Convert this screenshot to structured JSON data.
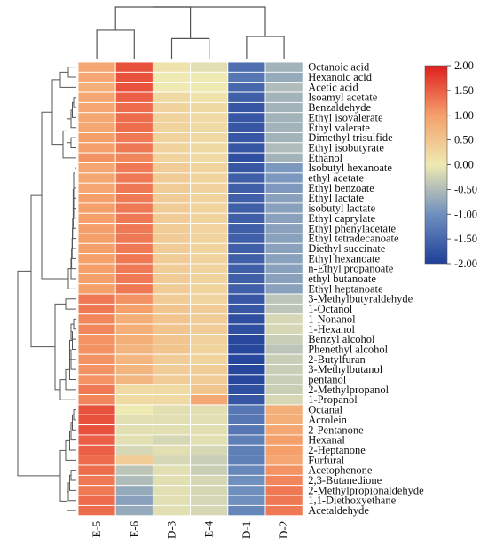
{
  "chart_data": {
    "type": "heatmap",
    "columns": [
      "E-5",
      "E-6",
      "D-3",
      "E-4",
      "D-1",
      "D-2"
    ],
    "rows": [
      "Octanoic acid",
      "Hexanoic acid",
      "Acetic acid",
      "Isoamyl acetate",
      "Benzaldehyde",
      "Ethyl isovalerate",
      "Ethyl valerate",
      "Dimethyl trisulfide",
      "Ethyl isobutyrate",
      "Ethanol",
      "Isobutyl hexanoate",
      "ethyl acetate",
      "Ethyl benzoate",
      "Ethyl lactate",
      "isobutyl lactate",
      "Ethyl caprylate",
      "Ethyl phenylacetate",
      "Ethyl tetradecanoate",
      "Diethyl succinate",
      "Ethyl hexanoate",
      "n-Ethyl propanoate",
      "ethyl butanoate",
      "Ethyl heptanoate",
      "3-Methylbutyraldehyde",
      "1-Octanol",
      "1-Nonanol",
      "1-Hexanol",
      "Benzyl alcohol",
      "Phenethyl alcohol",
      "2-Butylfuran",
      "3-Methylbutanol",
      "pentanol",
      "2-Methylpropanol",
      "1-Propanol",
      "Octanal",
      "Acrolein",
      "2-Pentanone",
      "Hexanal",
      "2-Heptanone",
      "Furfural",
      "Acetophenone",
      "2,3-Butanedione",
      "2-Methylpropionaldehyde",
      "1,1-Diethoxyethane",
      "Acetaldehyde"
    ],
    "values": [
      [
        0.9,
        1.6,
        0.1,
        -0.1,
        -1.4,
        -0.6
      ],
      [
        0.9,
        1.6,
        0.0,
        0.0,
        -1.3,
        -0.7
      ],
      [
        0.8,
        1.6,
        0.0,
        0.0,
        -1.5,
        -0.5
      ],
      [
        0.9,
        1.5,
        0.2,
        0.1,
        -1.6,
        -0.6
      ],
      [
        0.9,
        1.4,
        0.3,
        0.2,
        -1.7,
        -0.6
      ],
      [
        0.9,
        1.4,
        0.3,
        0.2,
        -1.7,
        -0.6
      ],
      [
        0.9,
        1.4,
        0.3,
        0.2,
        -1.7,
        -0.6
      ],
      [
        1.0,
        1.3,
        0.3,
        0.2,
        -1.7,
        -0.6
      ],
      [
        1.0,
        1.3,
        0.3,
        0.2,
        -1.7,
        -0.5
      ],
      [
        1.1,
        1.2,
        0.3,
        0.2,
        -1.8,
        -0.6
      ],
      [
        0.9,
        1.3,
        0.4,
        0.3,
        -1.7,
        -0.9
      ],
      [
        0.9,
        1.3,
        0.4,
        0.3,
        -1.6,
        -0.9
      ],
      [
        0.9,
        1.3,
        0.4,
        0.3,
        -1.6,
        -0.9
      ],
      [
        1.0,
        1.3,
        0.4,
        0.3,
        -1.6,
        -0.8
      ],
      [
        1.0,
        1.3,
        0.4,
        0.3,
        -1.6,
        -0.8
      ],
      [
        1.0,
        1.3,
        0.4,
        0.3,
        -1.6,
        -0.8
      ],
      [
        1.0,
        1.3,
        0.4,
        0.3,
        -1.6,
        -0.8
      ],
      [
        1.0,
        1.3,
        0.4,
        0.3,
        -1.6,
        -0.8
      ],
      [
        1.0,
        1.3,
        0.4,
        0.3,
        -1.6,
        -0.8
      ],
      [
        1.0,
        1.3,
        0.4,
        0.3,
        -1.6,
        -0.8
      ],
      [
        1.0,
        1.3,
        0.4,
        0.3,
        -1.6,
        -0.8
      ],
      [
        1.0,
        1.3,
        0.4,
        0.3,
        -1.6,
        -0.8
      ],
      [
        1.0,
        1.3,
        0.4,
        0.3,
        -1.6,
        -0.8
      ],
      [
        1.3,
        1.1,
        0.4,
        0.3,
        -1.7,
        -0.4
      ],
      [
        1.3,
        1.0,
        0.5,
        0.4,
        -1.7,
        -0.4
      ],
      [
        1.2,
        0.8,
        0.5,
        0.4,
        -1.8,
        -0.2
      ],
      [
        1.2,
        0.8,
        0.5,
        0.4,
        -1.8,
        -0.2
      ],
      [
        1.1,
        0.8,
        0.5,
        0.3,
        -1.9,
        -0.3
      ],
      [
        1.1,
        0.7,
        0.5,
        0.3,
        -1.9,
        -0.4
      ],
      [
        1.1,
        0.7,
        0.4,
        0.3,
        -1.9,
        -0.3
      ],
      [
        1.1,
        0.7,
        0.4,
        0.4,
        -1.9,
        -0.3
      ],
      [
        1.1,
        0.7,
        0.4,
        0.4,
        -1.9,
        -0.3
      ],
      [
        1.3,
        0.2,
        0.2,
        0.5,
        -1.8,
        -0.3
      ],
      [
        1.2,
        0.2,
        0.2,
        0.9,
        -1.7,
        -0.2
      ],
      [
        1.6,
        0.0,
        -0.1,
        -0.1,
        -1.3,
        0.8
      ],
      [
        1.6,
        -0.1,
        -0.1,
        -0.1,
        -1.3,
        0.8
      ],
      [
        1.6,
        -0.1,
        -0.1,
        -0.1,
        -1.3,
        0.9
      ],
      [
        1.5,
        -0.1,
        -0.2,
        -0.1,
        -1.2,
        1.0
      ],
      [
        1.5,
        -0.2,
        -0.1,
        -0.2,
        -1.2,
        1.0
      ],
      [
        1.4,
        0.4,
        -0.2,
        -0.3,
        -1.2,
        0.9
      ],
      [
        1.4,
        -0.4,
        -0.1,
        -0.3,
        -1.1,
        1.1
      ],
      [
        1.3,
        -0.5,
        -0.1,
        -0.2,
        -1.0,
        1.2
      ],
      [
        1.3,
        -0.7,
        -0.1,
        -0.2,
        -1.0,
        1.3
      ],
      [
        1.4,
        -0.8,
        -0.1,
        -0.2,
        -1.0,
        1.3
      ],
      [
        1.4,
        -0.7,
        -0.1,
        -0.2,
        -1.1,
        1.3
      ]
    ],
    "color_range": [
      -2.0,
      2.0
    ],
    "colorbar_ticks": [
      "2.00",
      "1.50",
      "1.00",
      "0.50",
      "0.00",
      "-0.50",
      "-1.00",
      "-1.50",
      "-2.00"
    ],
    "colors": {
      "low": "#2c54a3",
      "mid": "#efe9b2",
      "high": "#e01f1e",
      "grid": "#ffffff",
      "dendrogram": "#555555"
    },
    "column_dendrogram": [
      [
        2,
        3,
        1
      ],
      [
        0,
        1,
        1.4
      ],
      [
        6,
        7,
        2.5
      ],
      [
        4,
        5,
        1.1
      ],
      [
        8,
        9,
        2.5
      ]
    ],
    "row_dendrogram": "hierarchical clustering tree of the 45 compounds (left side)"
  }
}
